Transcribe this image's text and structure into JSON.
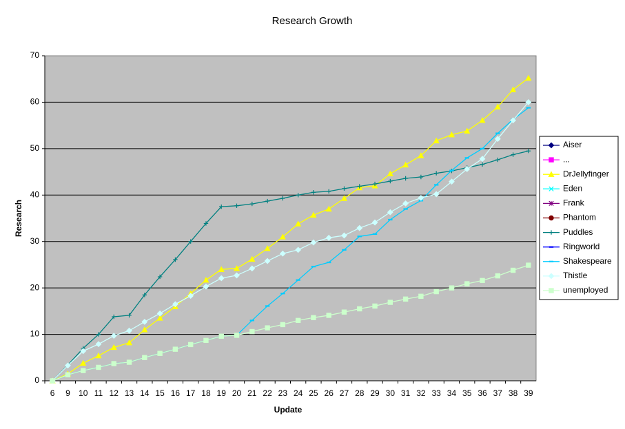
{
  "chart_data": {
    "type": "line",
    "title": "Research Growth",
    "x_label": "Update",
    "y_label": "Research",
    "categories": [
      "6",
      "9",
      "10",
      "11",
      "12",
      "13",
      "14",
      "15",
      "16",
      "17",
      "18",
      "19",
      "20",
      "21",
      "22",
      "23",
      "24",
      "25",
      "26",
      "27",
      "28",
      "29",
      "30",
      "31",
      "32",
      "33",
      "34",
      "35",
      "36",
      "37",
      "38",
      "39"
    ],
    "ylim": [
      0,
      70
    ],
    "yticks": [
      0,
      10,
      20,
      30,
      40,
      50,
      60,
      70
    ],
    "grid": true,
    "legend": "right",
    "series": [
      {
        "name": "Aiser",
        "color": "#000080",
        "marker": "diamond",
        "values": [
          null,
          null,
          null,
          null,
          null,
          null,
          null,
          null,
          null,
          null,
          null,
          null,
          null,
          null,
          null,
          null,
          null,
          null,
          null,
          null,
          null,
          null,
          null,
          null,
          null,
          null,
          null,
          null,
          null,
          null,
          null,
          null
        ]
      },
      {
        "name": "...",
        "color": "#ff00ff",
        "marker": "square",
        "values": [
          null,
          null,
          null,
          null,
          null,
          null,
          null,
          null,
          null,
          null,
          null,
          null,
          null,
          null,
          null,
          null,
          null,
          null,
          null,
          null,
          null,
          null,
          null,
          null,
          null,
          null,
          null,
          null,
          null,
          null,
          null,
          null
        ]
      },
      {
        "name": "DrJellyfinger",
        "color": "#ffff00",
        "marker": "triangle",
        "values": [
          0,
          1.5,
          3.8,
          5.4,
          7.2,
          8.2,
          11,
          13.5,
          16,
          18.8,
          21.7,
          24,
          24.2,
          26.2,
          28.5,
          31,
          33.8,
          35.7,
          37,
          39.3,
          41.6,
          42,
          44.6,
          46.5,
          48.5,
          51.7,
          53,
          53.8,
          56.1,
          59,
          62.7,
          65.2
        ]
      },
      {
        "name": "Eden",
        "color": "#00ffff",
        "marker": "x",
        "values": [
          null,
          null,
          null,
          null,
          null,
          null,
          null,
          null,
          null,
          null,
          null,
          null,
          null,
          null,
          null,
          null,
          null,
          null,
          null,
          null,
          null,
          null,
          null,
          null,
          null,
          null,
          null,
          null,
          null,
          null,
          null,
          null
        ]
      },
      {
        "name": "Frank",
        "color": "#800080",
        "marker": "star",
        "values": [
          null,
          null,
          null,
          null,
          null,
          null,
          null,
          null,
          null,
          null,
          null,
          null,
          null,
          null,
          null,
          null,
          null,
          null,
          null,
          null,
          null,
          null,
          null,
          null,
          null,
          null,
          null,
          null,
          null,
          null,
          null,
          null
        ]
      },
      {
        "name": "Phantom",
        "color": "#800000",
        "marker": "circle",
        "values": [
          null,
          null,
          null,
          null,
          null,
          null,
          null,
          null,
          null,
          null,
          null,
          null,
          null,
          null,
          null,
          null,
          null,
          null,
          null,
          null,
          null,
          null,
          null,
          null,
          null,
          null,
          null,
          null,
          null,
          null,
          null,
          null
        ]
      },
      {
        "name": "Puddles",
        "color": "#008080",
        "marker": "plus",
        "values": [
          0,
          3.4,
          7,
          10,
          13.8,
          14.1,
          18.5,
          22.4,
          26.1,
          30,
          33.9,
          37.5,
          37.7,
          38.1,
          38.7,
          39.3,
          40,
          40.6,
          40.8,
          41.4,
          41.9,
          42.4,
          43,
          43.6,
          43.9,
          44.7,
          45.2,
          45.9,
          46.6,
          47.6,
          48.7,
          49.5
        ]
      },
      {
        "name": "Ringworld",
        "color": "#0000ff",
        "marker": "dash",
        "values": [
          null,
          null,
          null,
          null,
          null,
          null,
          null,
          null,
          null,
          null,
          null,
          null,
          null,
          null,
          null,
          null,
          null,
          null,
          null,
          null,
          null,
          null,
          null,
          null,
          null,
          null,
          null,
          null,
          null,
          null,
          null,
          null
        ]
      },
      {
        "name": "Shakespeare",
        "color": "#00ccff",
        "marker": "dash",
        "values": [
          0,
          1.3,
          2.2,
          2.9,
          3.7,
          4,
          5,
          5.9,
          6.8,
          7.8,
          8.7,
          9.6,
          9.8,
          13,
          16.1,
          18.8,
          21.7,
          24.6,
          25.5,
          28.2,
          31.1,
          31.6,
          34.7,
          37,
          38.8,
          42.2,
          45.3,
          48,
          50,
          53.3,
          56.3,
          58.8
        ]
      },
      {
        "name": "Thistle",
        "color": "#ccffff",
        "marker": "diamond",
        "values": [
          0,
          3.3,
          6.4,
          7.9,
          9.7,
          10.8,
          12.7,
          14.5,
          16.5,
          18.3,
          20.3,
          22.1,
          22.7,
          24.2,
          25.8,
          27.4,
          28.2,
          29.8,
          30.8,
          31.3,
          32.9,
          34.1,
          36.3,
          38.2,
          39.4,
          40.2,
          42.9,
          45.6,
          47.8,
          52.1,
          56.1,
          60
        ]
      },
      {
        "name": "unemployed",
        "color": "#ccffcc",
        "marker": "square",
        "values": [
          0,
          1.3,
          2.2,
          2.9,
          3.7,
          4,
          5,
          5.9,
          6.8,
          7.8,
          8.7,
          9.6,
          9.8,
          10.6,
          11.4,
          12.1,
          13,
          13.6,
          14.1,
          14.8,
          15.5,
          16.1,
          16.9,
          17.6,
          18.2,
          19.2,
          20,
          20.9,
          21.6,
          22.6,
          23.8,
          24.9
        ]
      }
    ]
  }
}
